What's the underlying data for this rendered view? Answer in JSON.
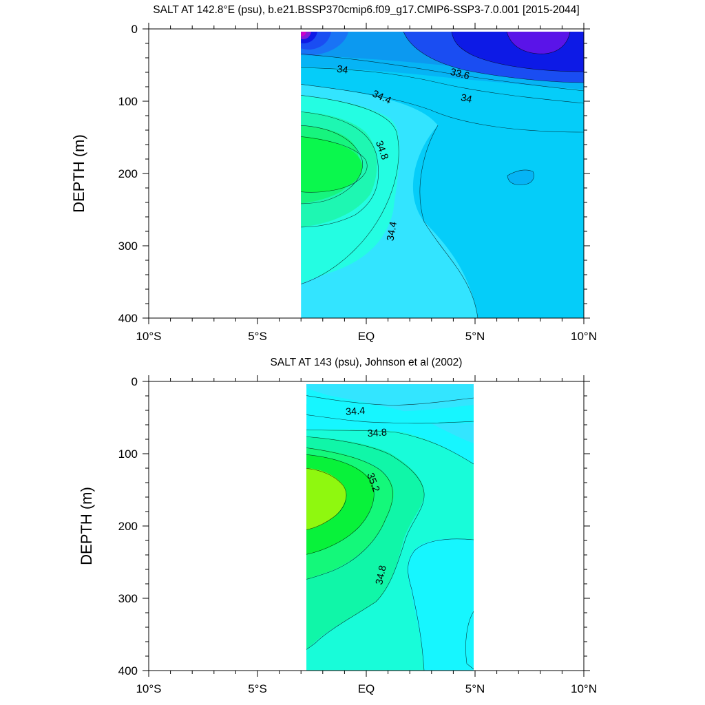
{
  "chart_data": [
    {
      "type": "contour",
      "title": "SALT AT 142.8°E (psu), b.e21.BSSP370cmip6.f09_g17.CMIP6-SSP3-7.0.001 [2015-2044]",
      "xlabel": "",
      "ylabel": "DEPTH (m)",
      "xlim": [
        -10,
        10
      ],
      "ylim": [
        400,
        0
      ],
      "x_ticks": [
        -10,
        -5,
        0,
        5,
        10
      ],
      "x_tick_labels": [
        "10°S",
        "5°S",
        "EQ",
        "5°N",
        "10°N"
      ],
      "y_ticks": [
        0,
        100,
        200,
        300,
        400
      ],
      "y_tick_labels": [
        "0",
        "100",
        "200",
        "300",
        "400"
      ],
      "data_xrange": [
        -3,
        10
      ],
      "contour_interval": 0.2,
      "contour_labels": [
        {
          "text": "34",
          "lat": -1.1,
          "depth": 57,
          "rotate": 8
        },
        {
          "text": "33.6",
          "lat": 4.3,
          "depth": 63,
          "rotate": 14
        },
        {
          "text": "34.4",
          "lat": 0.7,
          "depth": 95,
          "rotate": 25
        },
        {
          "text": "34",
          "lat": 4.6,
          "depth": 97,
          "rotate": 12
        },
        {
          "text": "34.8",
          "lat": 0.7,
          "depth": 168,
          "rotate": 70
        },
        {
          "text": "34.4",
          "lat": 1.2,
          "depth": 280,
          "rotate": -80
        }
      ],
      "colors": {
        "magenta": "#cc00cc",
        "purple": "#7f1bd9",
        "violet": "#5a14e8",
        "deep_blue": "#0d1ae6",
        "blue_1": "#1a4df2",
        "blue_2": "#1973f5",
        "blue_3": "#0c99f0",
        "sky_1": "#06b4f5",
        "sky_2": "#05cdf9",
        "cyan_1": "#33e4ff",
        "aqua_1": "#24fde2",
        "teal_green": "#1ef7b2",
        "mint": "#17f47e",
        "green": "#0af84d"
      }
    },
    {
      "type": "contour",
      "title": "SALT AT 143 (psu), Johnson et al (2002)",
      "xlabel": "",
      "ylabel": "DEPTH (m)",
      "xlim": [
        -10,
        10
      ],
      "ylim": [
        400,
        0
      ],
      "x_ticks": [
        -10,
        -5,
        0,
        5,
        10
      ],
      "x_tick_labels": [
        "10°S",
        "5°S",
        "EQ",
        "5°N",
        "10°N"
      ],
      "y_ticks": [
        0,
        100,
        200,
        300,
        400
      ],
      "y_tick_labels": [
        "0",
        "100",
        "200",
        "300",
        "400"
      ],
      "data_xrange": [
        -2.75,
        5
      ],
      "contour_interval": 0.2,
      "contour_labels": [
        {
          "text": "34.4",
          "lat": -0.5,
          "depth": 42,
          "rotate": -4
        },
        {
          "text": "34.8",
          "lat": 0.5,
          "depth": 72,
          "rotate": -4
        },
        {
          "text": "35.2",
          "lat": 0.3,
          "depth": 140,
          "rotate": 70
        },
        {
          "text": "34.8",
          "lat": 0.7,
          "depth": 268,
          "rotate": -78
        }
      ],
      "colors": {
        "light_blue": "#33e5ff",
        "cyan": "#16f6ff",
        "aqua": "#18fcd9",
        "teal_green": "#10f6a8",
        "mint": "#14f87a",
        "green": "#08f23a",
        "lime": "#8ff80f"
      }
    }
  ]
}
